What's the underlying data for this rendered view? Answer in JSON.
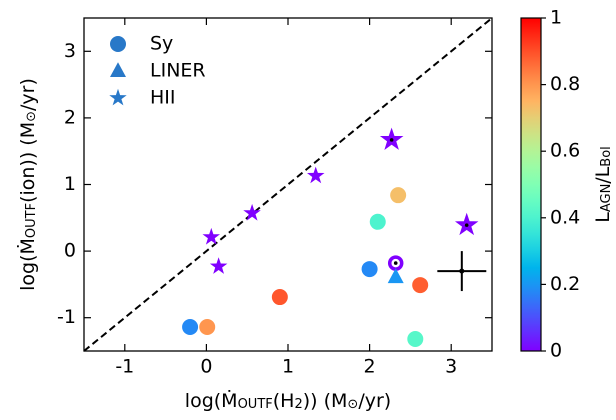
{
  "chart_data": {
    "type": "scatter",
    "xlabel_parts": [
      "log(Ṁ",
      "OUTF",
      "(H",
      "2",
      ")) (M",
      "⊙",
      "/yr)"
    ],
    "ylabel_parts": [
      "log(Ṁ",
      "OUTF",
      "(ion)) (M",
      "⊙",
      "/yr)"
    ],
    "colorbar_label_parts": [
      "L",
      "AGN",
      "/L",
      "Bol"
    ],
    "xlim": [
      -1.5,
      3.5
    ],
    "xticks": [
      -1,
      0,
      1,
      2,
      3
    ],
    "ylim": [
      -1.5,
      3.5
    ],
    "yticks": [
      -1,
      0,
      1,
      2,
      3
    ],
    "clim": [
      0,
      1
    ],
    "cticks": [
      0,
      0.2,
      0.4,
      0.6,
      0.8,
      1
    ],
    "cmap": "rainbow",
    "legend": "upper left",
    "legend_color": "#2878c8",
    "one_to_one_line": true,
    "series": [
      {
        "name": "Sy",
        "marker": "circle",
        "x": [
          -0.2,
          0.01,
          0.9,
          2.0,
          2.1,
          2.35,
          2.62,
          2.56,
          2.32
        ],
        "values": [
          -1.14,
          -1.14,
          -0.69,
          -0.27,
          0.44,
          0.84,
          -0.51,
          -1.32,
          -0.18
        ],
        "c": [
          0.18,
          0.8,
          0.89,
          0.18,
          0.4,
          0.73,
          0.88,
          0.42,
          0
        ],
        "open": [
          false,
          false,
          false,
          false,
          false,
          false,
          false,
          false,
          true
        ]
      },
      {
        "name": "LINER",
        "marker": "triangle",
        "x": [
          2.32
        ],
        "values": [
          -0.39
        ],
        "c": [
          0.2
        ],
        "open": [
          false
        ]
      },
      {
        "name": "HII",
        "marker": "star",
        "x": [
          0.06,
          0.15,
          0.56,
          1.34,
          2.27,
          3.19
        ],
        "values": [
          0.21,
          -0.23,
          0.57,
          1.13,
          1.67,
          0.39
        ],
        "c": [
          0,
          0,
          0,
          0,
          0,
          0
        ],
        "open": [
          false,
          false,
          false,
          false,
          true,
          true
        ]
      }
    ],
    "error_bar": {
      "x": 3.13,
      "y": -0.3,
      "xerr": 0.3,
      "yerr": 0.3
    }
  }
}
